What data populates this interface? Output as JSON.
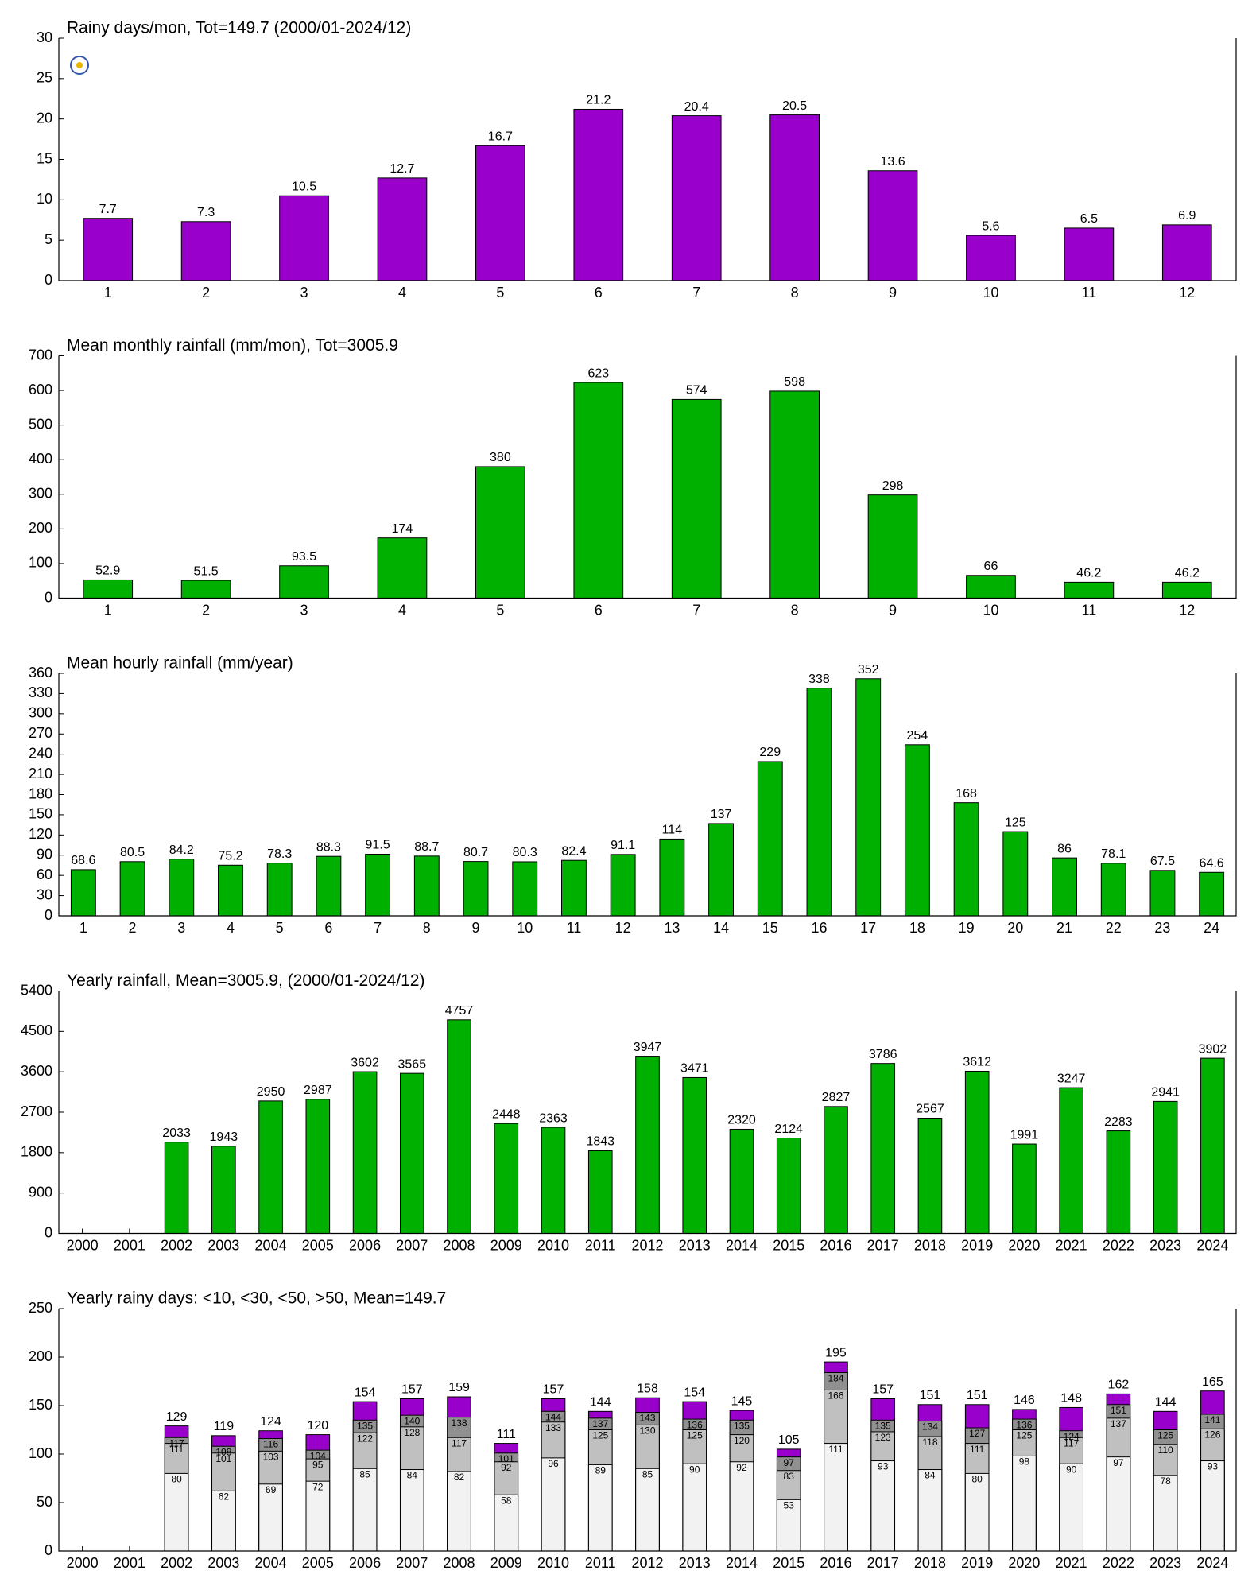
{
  "chart_data": [
    {
      "type": "bar",
      "title": "Rainy days/mon, Tot=149.7 (2000/01-2024/12)",
      "categories": [
        1,
        2,
        3,
        4,
        5,
        6,
        7,
        8,
        9,
        10,
        11,
        12
      ],
      "values": [
        7.7,
        7.3,
        10.5,
        12.7,
        16.7,
        21.2,
        20.4,
        20.5,
        13.6,
        5.6,
        6.5,
        6.9
      ],
      "color": "#9900cc",
      "ylim": [
        0,
        30
      ],
      "yticks": [
        0,
        5,
        10,
        15,
        20,
        25,
        30
      ]
    },
    {
      "type": "bar",
      "title": "Mean monthly rainfall (mm/mon), Tot=3005.9",
      "categories": [
        1,
        2,
        3,
        4,
        5,
        6,
        7,
        8,
        9,
        10,
        11,
        12
      ],
      "values": [
        52.9,
        51.5,
        93.5,
        174,
        380,
        623,
        574,
        598,
        298,
        66,
        46.2,
        46.2
      ],
      "color": "#00b000",
      "ylim": [
        0,
        700
      ],
      "yticks": [
        0,
        100,
        200,
        300,
        400,
        500,
        600,
        700
      ]
    },
    {
      "type": "bar",
      "title": "Mean hourly rainfall (mm/year)",
      "categories": [
        1,
        2,
        3,
        4,
        5,
        6,
        7,
        8,
        9,
        10,
        11,
        12,
        13,
        14,
        15,
        16,
        17,
        18,
        19,
        20,
        21,
        22,
        23,
        24
      ],
      "values": [
        68.6,
        80.5,
        84.2,
        75.2,
        78.3,
        88.3,
        91.5,
        88.7,
        80.7,
        80.3,
        82.4,
        91.1,
        114,
        137,
        229,
        338,
        352,
        254,
        168,
        125,
        86,
        78.1,
        67.5,
        64.6
      ],
      "color": "#00b000",
      "ylim": [
        0,
        360
      ],
      "yticks": [
        0,
        30,
        60,
        90,
        120,
        150,
        180,
        210,
        240,
        270,
        300,
        330,
        360
      ]
    },
    {
      "type": "bar",
      "title": "Yearly rainfall, Mean=3005.9, (2000/01-2024/12)",
      "categories": [
        2000,
        2001,
        2002,
        2003,
        2004,
        2005,
        2006,
        2007,
        2008,
        2009,
        2010,
        2011,
        2012,
        2013,
        2014,
        2015,
        2016,
        2017,
        2018,
        2019,
        2020,
        2021,
        2022,
        2023,
        2024
      ],
      "values": [
        null,
        null,
        2033,
        1943,
        2950,
        2987,
        3602,
        3565,
        4757,
        2448,
        2363,
        1843,
        3947,
        3471,
        2320,
        2124,
        2827,
        3786,
        2567,
        3612,
        1991,
        3247,
        2283,
        2941,
        3902
      ],
      "color": "#00b000",
      "ylim": [
        0,
        5400
      ],
      "yticks": [
        0,
        900,
        1800,
        2700,
        3600,
        4500,
        5400
      ]
    },
    {
      "type": "bar",
      "overlay": true,
      "title": "Yearly rainy days: <10, <30, <50, >50, Mean=149.7",
      "categories": [
        2000,
        2001,
        2002,
        2003,
        2004,
        2005,
        2006,
        2007,
        2008,
        2009,
        2010,
        2011,
        2012,
        2013,
        2014,
        2015,
        2016,
        2017,
        2018,
        2019,
        2020,
        2021,
        2022,
        2023,
        2024
      ],
      "series": [
        {
          "color": "#f2f2f2",
          "values": [
            null,
            null,
            80,
            62,
            69,
            72,
            85,
            84,
            82,
            58,
            96,
            89,
            85,
            90,
            92,
            53,
            111,
            93,
            84,
            80,
            98,
            90,
            97,
            78,
            93
          ]
        },
        {
          "color": "#c0c0c0",
          "values": [
            null,
            null,
            111,
            101,
            103,
            95,
            122,
            128,
            117,
            92,
            133,
            125,
            130,
            125,
            120,
            83,
            166,
            123,
            118,
            111,
            125,
            117,
            137,
            110,
            126
          ]
        },
        {
          "color": "#909090",
          "values": [
            null,
            null,
            117,
            108,
            116,
            104,
            135,
            140,
            138,
            101,
            144,
            137,
            143,
            136,
            135,
            97,
            184,
            135,
            134,
            127,
            136,
            124,
            151,
            125,
            141
          ]
        },
        {
          "color": "#9900cc",
          "values": [
            null,
            null,
            129,
            119,
            124,
            120,
            154,
            157,
            159,
            111,
            157,
            144,
            158,
            154,
            145,
            105,
            195,
            157,
            151,
            151,
            146,
            148,
            162,
            144,
            165
          ]
        }
      ],
      "ylim": [
        0,
        250
      ],
      "yticks": [
        0,
        50,
        100,
        150,
        200,
        250
      ]
    }
  ]
}
